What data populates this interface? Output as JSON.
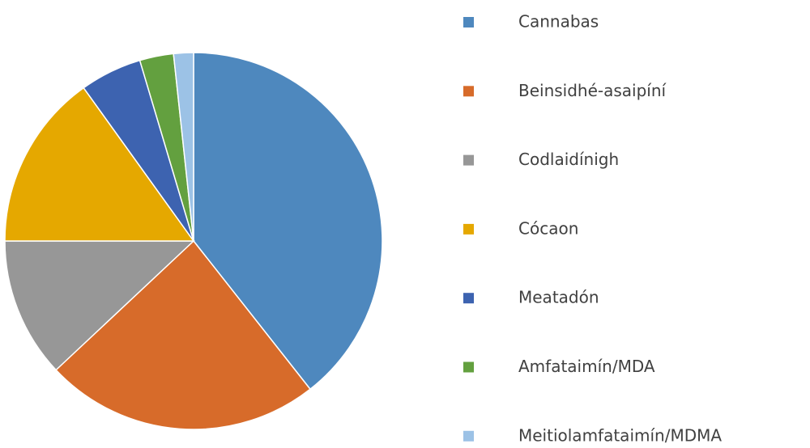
{
  "chart_data": {
    "type": "pie",
    "categories": [
      "Cannabas",
      "Beinsidhé-asaipíní",
      "Codlaidínigh",
      "Cócaon",
      "Meatadón",
      "Amfataimín/MDA",
      "Meitiolamfataimín/MDMA"
    ],
    "values": [
      39.4,
      23.6,
      12,
      15.1,
      5.3,
      2.9,
      1.7
    ],
    "colors": [
      "#4e88be",
      "#d76b2a",
      "#979797",
      "#e5a800",
      "#3d63b0",
      "#63a03f",
      "#9cc2e6"
    ],
    "legend": "right"
  }
}
